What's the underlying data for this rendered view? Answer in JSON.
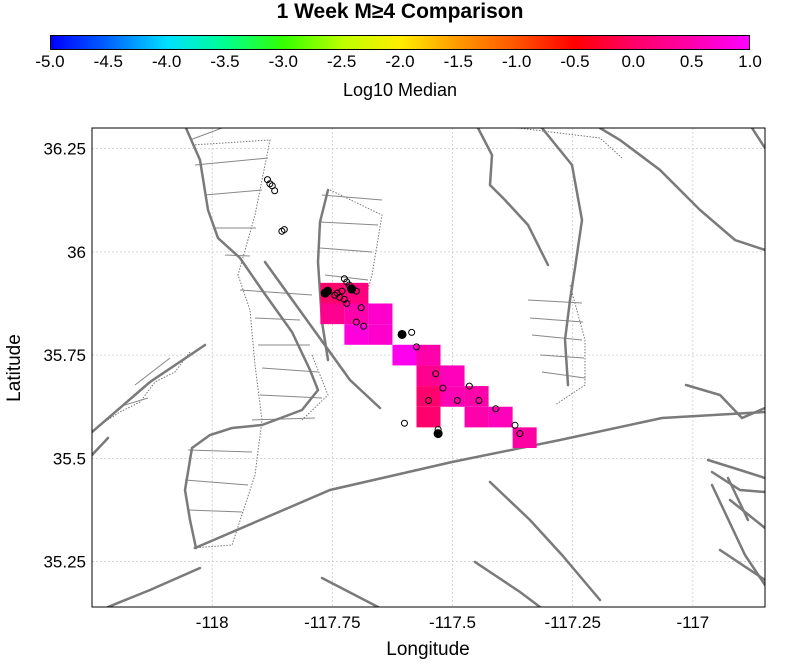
{
  "title": "1 Week M≥4 Comparison",
  "colorbar": {
    "label": "Log10 Median",
    "ticks": [
      "-5.0",
      "-4.5",
      "-4.0",
      "-3.5",
      "-3.0",
      "-2.5",
      "-2.0",
      "-1.5",
      "-1.0",
      "-0.5",
      "0.0",
      "0.5",
      "1.0"
    ],
    "range": [
      -5.0,
      1.0
    ],
    "colors": [
      "#0000ff",
      "#0066ff",
      "#00e0ff",
      "#00ff90",
      "#33ff00",
      "#bbff00",
      "#ffee00",
      "#ff9900",
      "#ff5500",
      "#ff0000",
      "#ff0066",
      "#ff00aa",
      "#ff00ff"
    ]
  },
  "axes": {
    "xlabel": "Longitude",
    "ylabel": "Latitude",
    "xticks": [
      "-118",
      "-117.75",
      "-117.5",
      "-117.25",
      "-117"
    ],
    "yticks": [
      "36.25",
      "36",
      "35.75",
      "35.5",
      "35.25"
    ],
    "xlim": [
      -118.25,
      -116.85
    ],
    "ylim": [
      35.14,
      36.3
    ]
  },
  "map_data": {
    "cell_size": 0.05,
    "grid_cells": [
      {
        "lon": -117.75,
        "lat": 35.9,
        "value": 0.05
      },
      {
        "lon": -117.7,
        "lat": 35.9,
        "value": 0.2
      },
      {
        "lon": -117.75,
        "lat": 35.85,
        "value": 0.3
      },
      {
        "lon": -117.7,
        "lat": 35.85,
        "value": 0.5
      },
      {
        "lon": -117.65,
        "lat": 35.85,
        "value": 0.7
      },
      {
        "lon": -117.7,
        "lat": 35.8,
        "value": 0.8
      },
      {
        "lon": -117.65,
        "lat": 35.8,
        "value": 0.7
      },
      {
        "lon": -117.6,
        "lat": 35.75,
        "value": 0.9
      },
      {
        "lon": -117.55,
        "lat": 35.75,
        "value": 0.5
      },
      {
        "lon": -117.55,
        "lat": 35.7,
        "value": 0.3
      },
      {
        "lon": -117.5,
        "lat": 35.7,
        "value": 0.6
      },
      {
        "lon": -117.55,
        "lat": 35.65,
        "value": 0.05
      },
      {
        "lon": -117.5,
        "lat": 35.65,
        "value": 0.55
      },
      {
        "lon": -117.45,
        "lat": 35.65,
        "value": 0.5
      },
      {
        "lon": -117.55,
        "lat": 35.6,
        "value": 0.05
      },
      {
        "lon": -117.45,
        "lat": 35.6,
        "value": 0.5
      },
      {
        "lon": -117.4,
        "lat": 35.6,
        "value": 0.6
      },
      {
        "lon": -117.35,
        "lat": 35.55,
        "value": 0.45
      }
    ],
    "earthquakes_filled": [
      {
        "lon": -117.765,
        "lat": 35.9
      },
      {
        "lon": -117.76,
        "lat": 35.905
      },
      {
        "lon": -117.71,
        "lat": 35.91
      },
      {
        "lon": -117.605,
        "lat": 35.8
      },
      {
        "lon": -117.53,
        "lat": 35.56
      }
    ],
    "earthquakes_open": [
      {
        "lon": -117.885,
        "lat": 36.175
      },
      {
        "lon": -117.88,
        "lat": 36.165
      },
      {
        "lon": -117.875,
        "lat": 36.16
      },
      {
        "lon": -117.87,
        "lat": 36.148
      },
      {
        "lon": -117.855,
        "lat": 36.05
      },
      {
        "lon": -117.85,
        "lat": 36.054
      },
      {
        "lon": -117.725,
        "lat": 35.935
      },
      {
        "lon": -117.72,
        "lat": 35.927
      },
      {
        "lon": -117.715,
        "lat": 35.92
      },
      {
        "lon": -117.74,
        "lat": 35.9
      },
      {
        "lon": -117.745,
        "lat": 35.895
      },
      {
        "lon": -117.735,
        "lat": 35.89
      },
      {
        "lon": -117.725,
        "lat": 35.885
      },
      {
        "lon": -117.73,
        "lat": 35.905
      },
      {
        "lon": -117.7,
        "lat": 35.905
      },
      {
        "lon": -117.72,
        "lat": 35.875
      },
      {
        "lon": -117.69,
        "lat": 35.865
      },
      {
        "lon": -117.7,
        "lat": 35.83
      },
      {
        "lon": -117.685,
        "lat": 35.82
      },
      {
        "lon": -117.585,
        "lat": 35.805
      },
      {
        "lon": -117.575,
        "lat": 35.77
      },
      {
        "lon": -117.535,
        "lat": 35.705
      },
      {
        "lon": -117.52,
        "lat": 35.67
      },
      {
        "lon": -117.465,
        "lat": 35.675
      },
      {
        "lon": -117.55,
        "lat": 35.64
      },
      {
        "lon": -117.49,
        "lat": 35.64
      },
      {
        "lon": -117.445,
        "lat": 35.64
      },
      {
        "lon": -117.41,
        "lat": 35.62
      },
      {
        "lon": -117.6,
        "lat": 35.585
      },
      {
        "lon": -117.53,
        "lat": 35.57
      },
      {
        "lon": -117.37,
        "lat": 35.58
      },
      {
        "lon": -117.36,
        "lat": 35.56
      }
    ]
  }
}
